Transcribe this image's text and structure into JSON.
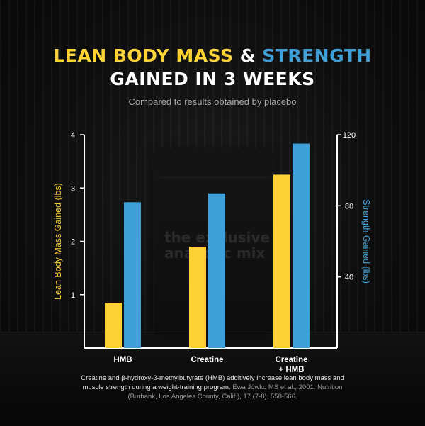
{
  "title": {
    "line1_part1": "LEAN BODY MASS",
    "line1_amp": "&",
    "line1_part2": "STRENGTH",
    "line2": "GAINED IN 3 WEEKS",
    "subtitle": "Compared to results obtained by placebo"
  },
  "background": {
    "product_label": "the exclusive anabolic mix"
  },
  "colors": {
    "lean_mass": "#FDD234",
    "strength": "#3FA0D8",
    "axis": "#FFFFFF",
    "background": "#0c0c0c"
  },
  "chart_data": {
    "type": "bar",
    "categories": [
      [
        "HMB"
      ],
      [
        "Creatine"
      ],
      [
        "Creatine",
        "+ HMB"
      ]
    ],
    "series": [
      {
        "name": "Lean Body Mass Gained (lbs)",
        "axis": "left",
        "color": "#FDD234",
        "values": [
          0.85,
          1.9,
          3.25
        ]
      },
      {
        "name": "Strength Gained (lbs)",
        "axis": "right",
        "color": "#3FA0D8",
        "values": [
          82,
          87,
          115
        ]
      }
    ],
    "ylabel_left": "Lean Body Mass Gained (lbs)",
    "ylabel_right": "Strength Gained (lbs)",
    "ylim_left": [
      0,
      4
    ],
    "ylim_right": [
      0,
      120
    ],
    "yticks_left": [
      1,
      2,
      3,
      4
    ],
    "yticks_right": [
      40,
      80,
      120
    ],
    "grid": false,
    "legend": "none"
  },
  "footnote": {
    "text": "Creatine and β-hydroxy-β-methylbutyrate (HMB) additively increase lean body mass and muscle strength during a weight-training program.",
    "citation": "Ewa Jówko MS et al., 2001. Nutrition (Burbank, Los Angeles County, Calif.), 17 (7-8), 558-566."
  }
}
